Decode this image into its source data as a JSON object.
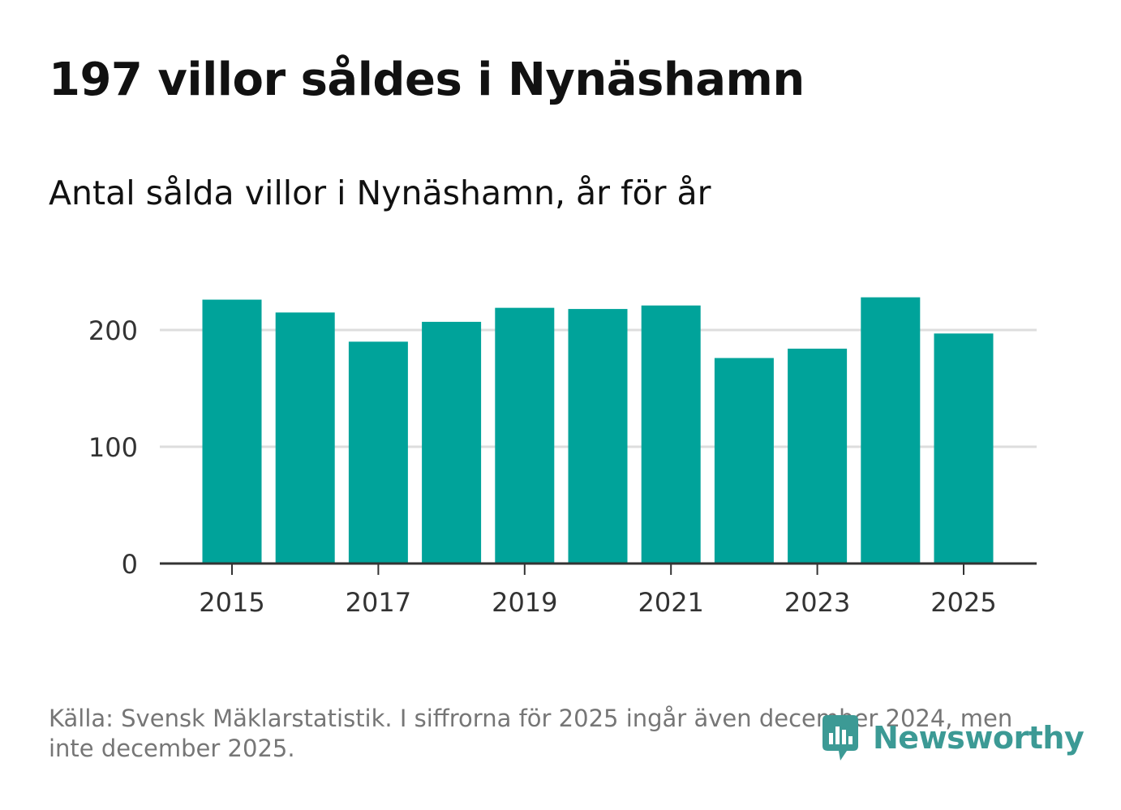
{
  "title": "197 villor såldes i Nynäshamn",
  "subtitle": "Antal sålda villor i Nynäshamn, år för år",
  "footnote": "Källa: Svensk Mäklarstatistik. I siffrorna för 2025 ingår även december 2024, men inte december 2025.",
  "logo": {
    "text": "Newsworthy",
    "icon": "newsworthy-logo-icon",
    "color": "#3c9a95"
  },
  "colors": {
    "bar": "#00a39a",
    "grid": "#dddddd",
    "axis": "#333333",
    "tick_text": "#333333"
  },
  "chart_data": {
    "type": "bar",
    "title": "Antal sålda villor i Nynäshamn, år för år",
    "xlabel": "",
    "ylabel": "",
    "categories": [
      "2015",
      "2016",
      "2017",
      "2018",
      "2019",
      "2020",
      "2021",
      "2022",
      "2023",
      "2024",
      "2025"
    ],
    "values": [
      226,
      215,
      190,
      207,
      219,
      218,
      221,
      176,
      184,
      228,
      197
    ],
    "ylim": [
      0,
      240
    ],
    "yticks": [
      0,
      100,
      200
    ],
    "ytick_labels": [
      "0",
      "100",
      "200"
    ],
    "xtick_labels": [
      "2015",
      "2017",
      "2019",
      "2021",
      "2023",
      "2025"
    ],
    "grid": true,
    "legend": "none"
  }
}
